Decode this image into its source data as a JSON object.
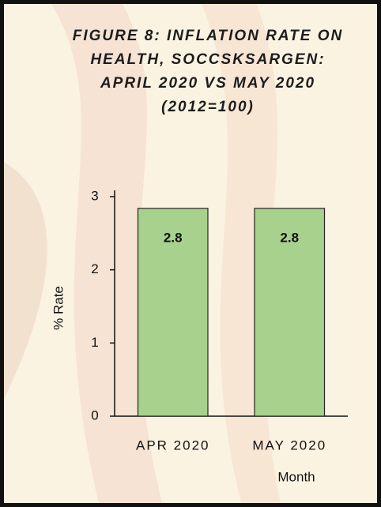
{
  "chart_data": {
    "type": "bar",
    "title": "FIGURE 8: INFLATION RATE ON HEALTH, SOCCSKSARGEN: APRIL 2020 VS MAY 2020 (2012=100)",
    "categories": [
      "APR 2020",
      "MAY 2020"
    ],
    "values": [
      2.84,
      2.84
    ],
    "value_labels": [
      "2.8",
      "2.8"
    ],
    "color": "#a9d18e",
    "xlabel": "Month",
    "ylabel": "% Rate",
    "ylim": [
      0,
      3
    ],
    "yticks": [
      0,
      1,
      2,
      3
    ],
    "grid": false
  }
}
